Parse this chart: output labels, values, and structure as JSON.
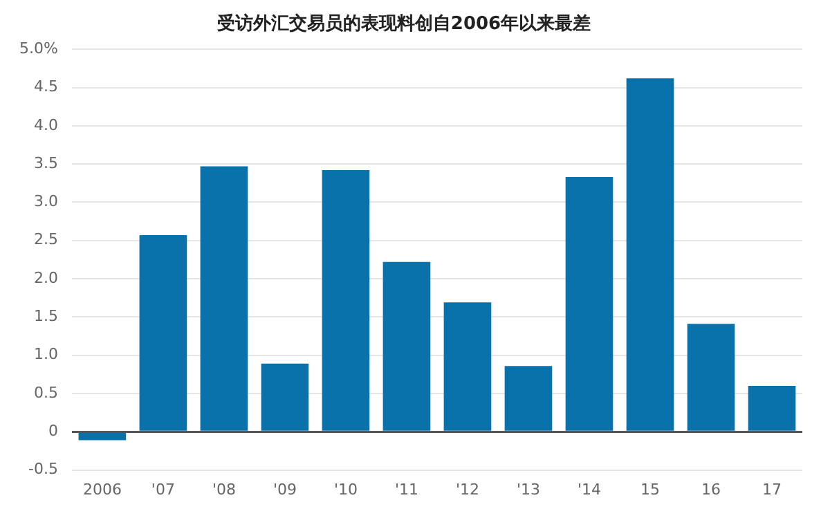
{
  "chart_data": {
    "type": "bar",
    "title": "受访外汇交易员的表现料创自2006年以来最差",
    "categories": [
      "2006",
      "'07",
      "'08",
      "'09",
      "'10",
      "'11",
      "'12",
      "'13",
      "'14",
      "15",
      "16",
      "17"
    ],
    "values": [
      -0.11,
      2.57,
      3.47,
      0.89,
      3.42,
      2.22,
      1.69,
      0.86,
      3.33,
      4.62,
      1.41,
      0.6
    ],
    "color": "#0a72aa",
    "ylim": [
      -0.5,
      5.0
    ],
    "yticks": [
      {
        "value": -0.5,
        "label": "-0.5"
      },
      {
        "value": 0,
        "label": "0"
      },
      {
        "value": 0.5,
        "label": "0.5"
      },
      {
        "value": 1.0,
        "label": "1.0"
      },
      {
        "value": 1.5,
        "label": "1.5"
      },
      {
        "value": 2.0,
        "label": "2.0"
      },
      {
        "value": 2.5,
        "label": "2.5"
      },
      {
        "value": 3.0,
        "label": "3.0"
      },
      {
        "value": 3.5,
        "label": "3.5"
      },
      {
        "value": 4.0,
        "label": "4.0"
      },
      {
        "value": 4.5,
        "label": "4.5"
      },
      {
        "value": 5.0,
        "label": "5.0%"
      }
    ],
    "grid": "y",
    "legend": false
  }
}
